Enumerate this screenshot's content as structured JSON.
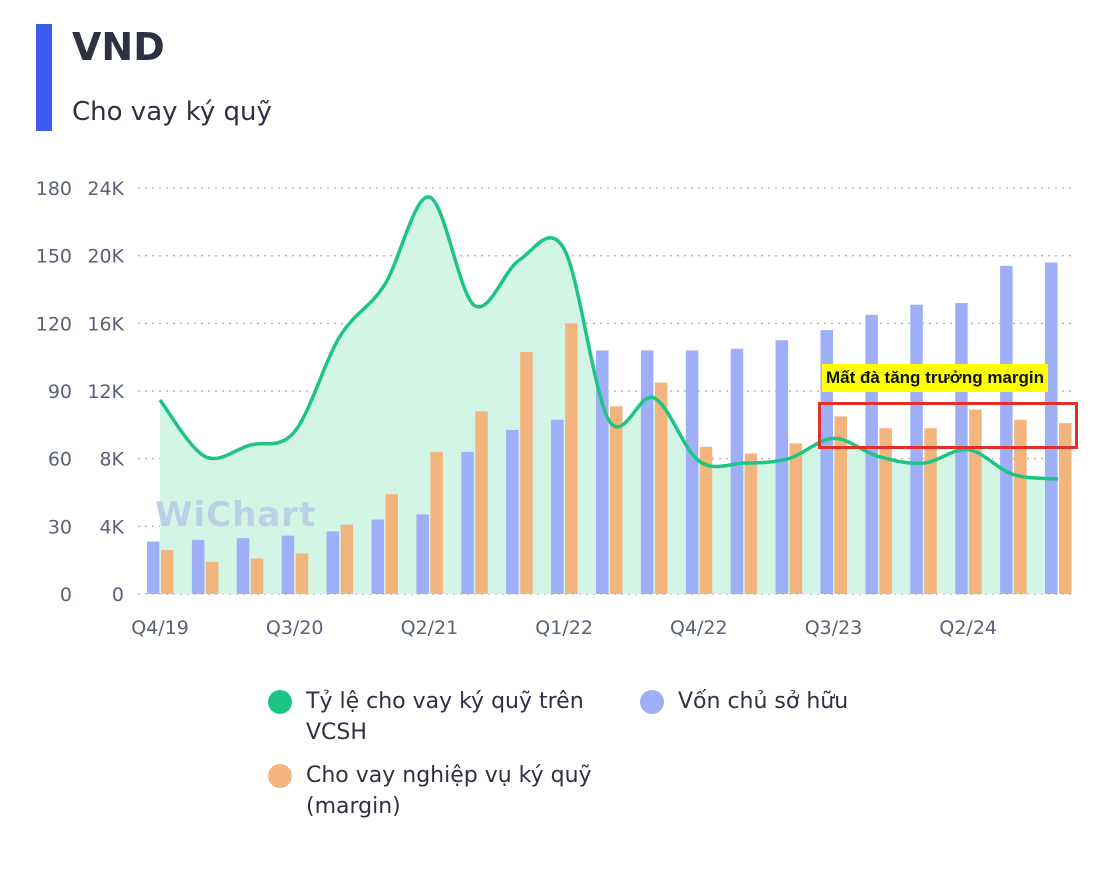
{
  "header": {
    "title": "VND",
    "subtitle": "Cho vay ký quỹ",
    "accent_color": "#3d5af1"
  },
  "watermark": {
    "text": "WiChart"
  },
  "annotation": {
    "text": "Mất đà tăng trưởng margin"
  },
  "legend": {
    "items": [
      {
        "label": "Tỷ lệ cho vay ký quỹ trên VCSH",
        "color": "#1dc585"
      },
      {
        "label": "Vốn chủ sở hữu",
        "color": "#9eaef7"
      },
      {
        "label": "Cho vay nghiệp vụ ký quỹ (margin)",
        "color": "#f2b57e"
      }
    ]
  },
  "chart_data": {
    "type": "bar",
    "categories": [
      "Q4/19",
      "Q1/20",
      "Q2/20",
      "Q3/20",
      "Q4/20",
      "Q1/21",
      "Q2/21",
      "Q3/21",
      "Q4/21",
      "Q1/22",
      "Q2/22",
      "Q3/22",
      "Q4/22",
      "Q1/23",
      "Q2/23",
      "Q3/23",
      "Q4/23",
      "Q1/24",
      "Q2/24",
      "Q3/24",
      "Q4/24"
    ],
    "x_tick_labels": [
      "Q4/19",
      "Q3/20",
      "Q2/21",
      "Q1/22",
      "Q4/22",
      "Q3/23",
      "Q2/24"
    ],
    "left_axis_1": {
      "ticks": [
        "0",
        "30",
        "60",
        "90",
        "120",
        "150",
        "180"
      ],
      "range": [
        0,
        180
      ]
    },
    "left_axis_2": {
      "ticks": [
        "0",
        "4K",
        "8K",
        "12K",
        "16K",
        "20K",
        "24K"
      ],
      "range": [
        0,
        24000
      ]
    },
    "grid": "horizontal dotted",
    "legend_position": "bottom",
    "series": [
      {
        "name": "Vốn chủ sở hữu",
        "type": "bar",
        "axis": "right",
        "color": "#9eaef7",
        "values": [
          3100,
          3200,
          3300,
          3450,
          3700,
          4400,
          4700,
          8400,
          9700,
          10300,
          14400,
          14400,
          14400,
          14500,
          15000,
          15600,
          16500,
          17100,
          17200,
          19400,
          19600
        ]
      },
      {
        "name": "Cho vay nghiệp vụ ký quỹ (margin)",
        "type": "bar",
        "axis": "right",
        "color": "#f2b57e",
        "values": [
          2600,
          1900,
          2100,
          2400,
          4100,
          5900,
          8400,
          10800,
          14300,
          16000,
          11100,
          12500,
          8700,
          8300,
          8900,
          10500,
          9800,
          9800,
          10900,
          10300,
          10100
        ]
      },
      {
        "name": "Tỷ lệ cho vay ký quỹ trên VCSH",
        "type": "area",
        "axis": "left",
        "color": "#1dc585",
        "values": [
          86,
          61,
          66,
          72,
          114,
          137,
          176,
          128,
          148,
          153,
          77,
          87,
          59,
          58,
          60,
          69,
          61,
          58,
          64,
          53,
          51
        ]
      }
    ]
  }
}
